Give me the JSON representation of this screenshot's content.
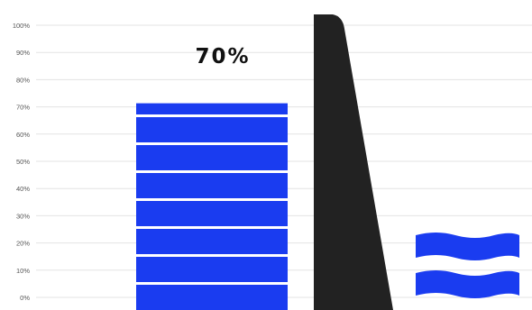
{
  "chart_data": {
    "type": "bar",
    "headline": "70%",
    "y_ticks": [
      "0%",
      "10%",
      "20%",
      "30%",
      "40%",
      "50%",
      "60%",
      "70%",
      "80%",
      "90%",
      "100%"
    ],
    "ylim": [
      0,
      100
    ],
    "grid": true,
    "series": [
      {
        "value": 70,
        "color": "#1a3cf0"
      }
    ],
    "colors": {
      "bar": "#1a3cf0",
      "bar_divider": "#ffffff",
      "grid": "#e3e3e3",
      "wall": "#222222",
      "water": "#1a3cf0"
    },
    "icons": [
      "dam-wall-icon",
      "water-waves-icon"
    ]
  }
}
